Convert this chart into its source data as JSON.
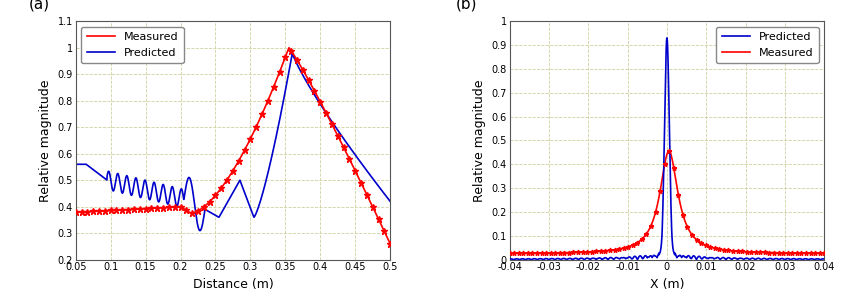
{
  "panel_a": {
    "title": "(a)",
    "xlabel": "Distance (m)",
    "ylabel": "Relative magnitude",
    "xlim": [
      0.05,
      0.5
    ],
    "ylim": [
      0.2,
      1.1
    ],
    "xtick_vals": [
      0.05,
      0.1,
      0.15,
      0.2,
      0.25,
      0.3,
      0.35,
      0.4,
      0.45,
      0.5
    ],
    "xtick_labels": [
      "0.05",
      "0.1",
      "0.15",
      "0.2",
      "0.25",
      "0.3",
      "0.35",
      "0.4",
      "0.45",
      "0.5"
    ],
    "ytick_vals": [
      0.2,
      0.3,
      0.4,
      0.5,
      0.6,
      0.7,
      0.8,
      0.9,
      1.0,
      1.1
    ],
    "ytick_labels": [
      "0.2",
      "0.3",
      "0.4",
      "0.5",
      "0.6",
      "0.7",
      "0.8",
      "0.9",
      "1",
      "1.1"
    ],
    "measured_color": "#ff0000",
    "predicted_color": "#0000cc",
    "legend_labels": [
      "Measured",
      "Predicted"
    ],
    "legend_loc": "upper left"
  },
  "panel_b": {
    "title": "(b)",
    "xlabel": "X (m)",
    "ylabel": "Relative magnitude",
    "xlim": [
      -0.04,
      0.04
    ],
    "ylim": [
      0.0,
      1.0
    ],
    "xtick_vals": [
      -0.04,
      -0.03,
      -0.02,
      -0.01,
      0.0,
      0.01,
      0.02,
      0.03,
      0.04
    ],
    "xtick_labels": [
      "-0.04",
      "-0.03",
      "-0.02",
      "-0.01",
      "0",
      "0.01",
      "0.02",
      "0.03",
      "0.04"
    ],
    "ytick_vals": [
      0.0,
      0.1,
      0.2,
      0.3,
      0.4,
      0.5,
      0.6,
      0.7,
      0.8,
      0.9,
      1.0
    ],
    "ytick_labels": [
      "0",
      "0.1",
      "0.2",
      "0.3",
      "0.4",
      "0.5",
      "0.6",
      "0.7",
      "0.8",
      "0.9",
      "1"
    ],
    "predicted_color": "#0000cc",
    "measured_color": "#ff0000",
    "legend_labels": [
      "Predicted",
      "Measured"
    ],
    "legend_loc": "upper right"
  },
  "background_color": "#ffffff",
  "grid_color": "#d0d0a0",
  "grid_style": "--",
  "grid_linewidth": 0.6,
  "tick_fontsize": 7,
  "label_fontsize": 9,
  "legend_fontsize": 8,
  "title_fontsize": 11,
  "line_width": 1.2
}
